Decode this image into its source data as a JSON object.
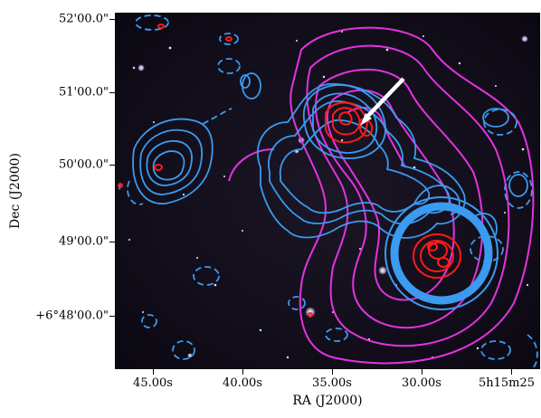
{
  "figure": {
    "ylabel": "Dec (J2000)",
    "xlabel": "RA (J2000)",
    "yticks": [
      "52'00.0\"",
      "51'00.0\"",
      "50'00.0\"",
      "49'00.0\"",
      "+6°48'00.0\""
    ],
    "xticks": [
      "45.00s",
      "40.00s",
      "35.00s",
      "30.00s",
      "5h15m25"
    ]
  },
  "overlays": {
    "radio_contours_color": "#3a9bf0",
    "xray_contours_color": "#e233e0",
    "optical_peaks_color": "#ff1a1a",
    "arrow_color": "#ffffff",
    "background_color": "#0e0a16"
  }
}
